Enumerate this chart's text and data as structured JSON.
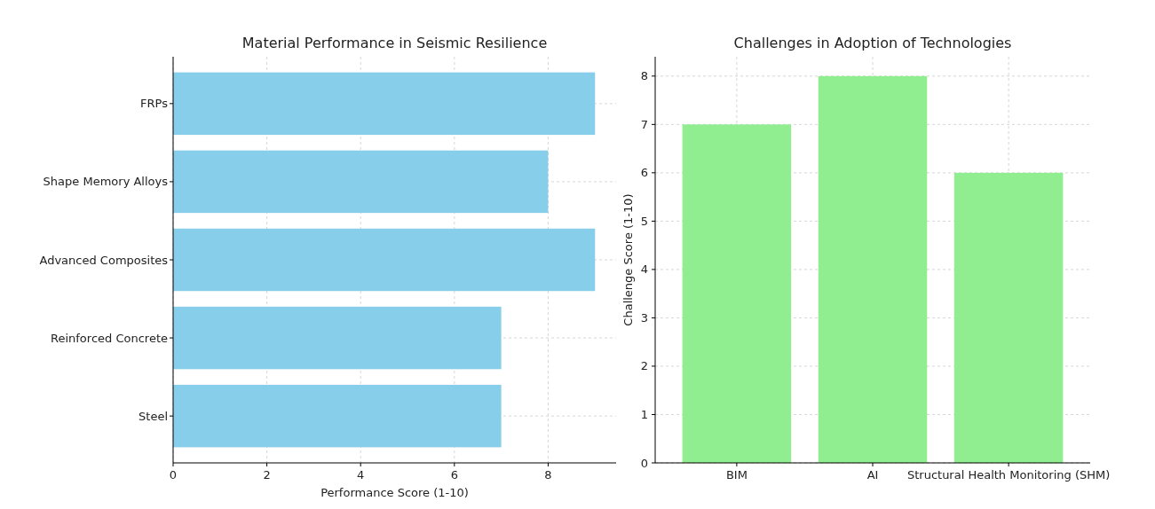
{
  "chart_data": [
    {
      "type": "bar",
      "orientation": "horizontal",
      "title": "Material Performance in Seismic Resilience",
      "xlabel": "Performance Score (1-10)",
      "categories": [
        "FRPs",
        "Shape Memory Alloys",
        "Advanced Composites",
        "Reinforced Concrete",
        "Steel"
      ],
      "values": [
        9,
        8,
        9,
        7,
        7
      ],
      "color": "#87ceeb",
      "xlim": [
        0,
        9.45
      ],
      "xticks": [
        0,
        2,
        4,
        6,
        8
      ],
      "grid": true
    },
    {
      "type": "bar",
      "title": "Challenges in Adoption of Technologies",
      "ylabel": "Challenge Score (1-10)",
      "categories": [
        "BIM",
        "AI",
        "Structural Health Monitoring (SHM)"
      ],
      "values": [
        7,
        8,
        6
      ],
      "color": "#90ee90",
      "ylim": [
        0,
        8.4
      ],
      "yticks": [
        0,
        1,
        2,
        3,
        4,
        5,
        6,
        7,
        8
      ],
      "grid": true
    }
  ]
}
